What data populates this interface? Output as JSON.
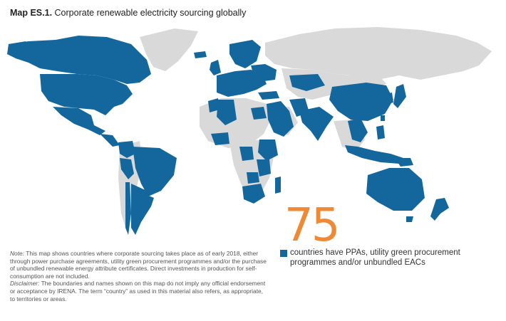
{
  "title": {
    "label": "Map ES.1.",
    "text": "Corporate renewable electricity sourcing globally"
  },
  "map": {
    "highlight_color": "#14679d",
    "base_color": "#d9d9d9",
    "accent_color": "#ee8a35"
  },
  "stat": {
    "number": "75",
    "legend_text": "countries have PPAs, utility green procurement programmes and/or unbundled EACs"
  },
  "note": {
    "label": "Note:",
    "text": "This map shows countries where corporate sourcing takes place as of early 2018, either through power purchase agreements, utility green procurement programmes and/or the purchase of unbundled renewable energy attribute certificates. Direct investments in production for self-consumption are not included."
  },
  "disclaimer": {
    "label": "Disclaimer:",
    "text": "The boundaries and names shown on this map do not imply any official endorsement or acceptance by IRENA. The term “country” as used in this material also refers, as appropriate, to territories or areas."
  }
}
